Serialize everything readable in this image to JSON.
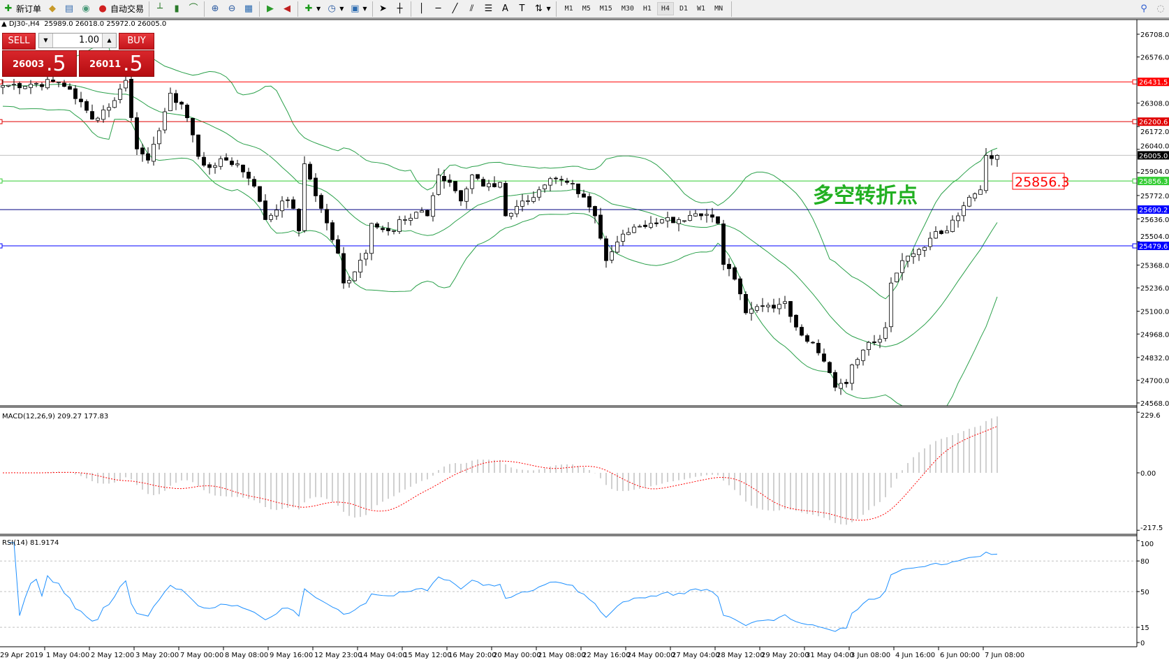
{
  "toolbar": {
    "new_order": "新订单",
    "auto_trading": "自动交易",
    "timeframes": [
      "M1",
      "M5",
      "M15",
      "M30",
      "H1",
      "H4",
      "D1",
      "W1",
      "MN"
    ],
    "active_timeframe": "H4"
  },
  "chart_header": {
    "symbol": "DJ30-,H4",
    "ohlc": "25989.0 26018.0 25972.0 26005.0"
  },
  "trade_panel": {
    "sell": "SELL",
    "buy": "BUY",
    "lot": "1.00",
    "bid_main": "26003",
    "bid_frac": ".5",
    "ask_main": "26011",
    "ask_frac": ".5"
  },
  "annotation": {
    "text": "多空转折点",
    "price_label": "25856.3",
    "color": "#22b022"
  },
  "colors": {
    "bull_candle": "#ffffff",
    "bear_candle": "#000000",
    "bollinger": "#2aa04a",
    "macd_hist": "#c0c0c0",
    "macd_signal": "#ff0000",
    "rsi": "#1e90ff"
  },
  "chart_data": {
    "type": "candlestick",
    "price_axis": {
      "ticks": [
        "26708.0",
        "26576.0",
        "26308.0",
        "26172.0",
        "26040.0",
        "25904.0",
        "25772.0",
        "25636.0",
        "25504.0",
        "25368.0",
        "25236.0",
        "25100.0",
        "24968.0",
        "24832.0",
        "24700.0",
        "24568.0"
      ],
      "range": [
        24568,
        26708
      ]
    },
    "time_axis": [
      "29 Apr 2019",
      "1 May 04:00",
      "2 May 12:00",
      "3 May 20:00",
      "7 May 00:00",
      "8 May 08:00",
      "9 May 16:00",
      "12 May 23:00",
      "14 May 04:00",
      "15 May 12:00",
      "16 May 20:00",
      "20 May 00:00",
      "21 May 08:00",
      "22 May 16:00",
      "24 May 00:00",
      "27 May 04:00",
      "28 May 12:00",
      "29 May 20:00",
      "31 May 04:00",
      "3 Jun 08:00",
      "4 Jun 16:00",
      "6 Jun 00:00",
      "7 Jun 08:00"
    ],
    "bars": 179,
    "close_keypoints": [
      [
        0,
        26410
      ],
      [
        10,
        26431
      ],
      [
        12,
        26388
      ],
      [
        16,
        26215
      ],
      [
        20,
        26323
      ],
      [
        22,
        26440
      ],
      [
        24,
        26042
      ],
      [
        26,
        25977
      ],
      [
        29,
        26258
      ],
      [
        30,
        26366
      ],
      [
        32,
        26302
      ],
      [
        35,
        25999
      ],
      [
        37,
        25934
      ],
      [
        40,
        25977
      ],
      [
        42,
        25956
      ],
      [
        45,
        25826
      ],
      [
        47,
        25632
      ],
      [
        50,
        25740
      ],
      [
        52,
        25697
      ],
      [
        53,
        25567
      ],
      [
        54,
        25956
      ],
      [
        57,
        25697
      ],
      [
        60,
        25437
      ],
      [
        61,
        25264
      ],
      [
        63,
        25329
      ],
      [
        65,
        25437
      ],
      [
        66,
        25610
      ],
      [
        69,
        25567
      ],
      [
        72,
        25632
      ],
      [
        74,
        25675
      ],
      [
        76,
        25654
      ],
      [
        78,
        25891
      ],
      [
        80,
        25848
      ],
      [
        82,
        25740
      ],
      [
        84,
        25891
      ],
      [
        86,
        25826
      ],
      [
        89,
        25848
      ],
      [
        90,
        25654
      ],
      [
        93,
        25740
      ],
      [
        96,
        25805
      ],
      [
        98,
        25870
      ],
      [
        101,
        25848
      ],
      [
        104,
        25762
      ],
      [
        106,
        25654
      ],
      [
        108,
        25394
      ],
      [
        110,
        25502
      ],
      [
        113,
        25589
      ],
      [
        116,
        25610
      ],
      [
        118,
        25632
      ],
      [
        121,
        25632
      ],
      [
        125,
        25654
      ],
      [
        128,
        25610
      ],
      [
        129,
        25372
      ],
      [
        131,
        25286
      ],
      [
        133,
        25091
      ],
      [
        134,
        25113
      ],
      [
        137,
        25135
      ],
      [
        140,
        25156
      ],
      [
        141,
        25070
      ],
      [
        143,
        24961
      ],
      [
        145,
        24918
      ],
      [
        147,
        24810
      ],
      [
        149,
        24659
      ],
      [
        151,
        24680
      ],
      [
        152,
        24789
      ],
      [
        154,
        24875
      ],
      [
        156,
        24918
      ],
      [
        158,
        25005
      ],
      [
        159,
        25264
      ],
      [
        161,
        25394
      ],
      [
        164,
        25459
      ],
      [
        166,
        25524
      ],
      [
        169,
        25567
      ],
      [
        171,
        25654
      ],
      [
        173,
        25762
      ],
      [
        175,
        25805
      ],
      [
        176,
        26005
      ],
      [
        178,
        26005
      ]
    ],
    "horizontal_lines": [
      {
        "price": 26431.5,
        "label": "26431.5",
        "color": "#ff0000"
      },
      {
        "price": 26200.6,
        "label": "26200.6",
        "color": "#e00000"
      },
      {
        "price": 26005.0,
        "label": "26005.0",
        "color": "#c0c0c0",
        "label_bg": "#000000"
      },
      {
        "price": 25856.3,
        "label": "25856.3",
        "color": "#33cc33"
      },
      {
        "price": 25690.2,
        "label": "25690.2",
        "color": "#000080",
        "label_bg": "#0000ff"
      },
      {
        "price": 25479.6,
        "label": "25479.6",
        "color": "#0000ff"
      }
    ],
    "indicators": {
      "macd": {
        "title": "MACD(12,26,9) 209.27 177.83",
        "ticks": [
          "229.6",
          "0.00",
          "-217.5"
        ],
        "range": [
          -217.5,
          229.6
        ]
      },
      "rsi": {
        "title": "RSI(14) 81.9174",
        "ticks": [
          "100",
          "80",
          "50",
          "15",
          "0"
        ],
        "levels": [
          80,
          50,
          15
        ]
      }
    }
  }
}
